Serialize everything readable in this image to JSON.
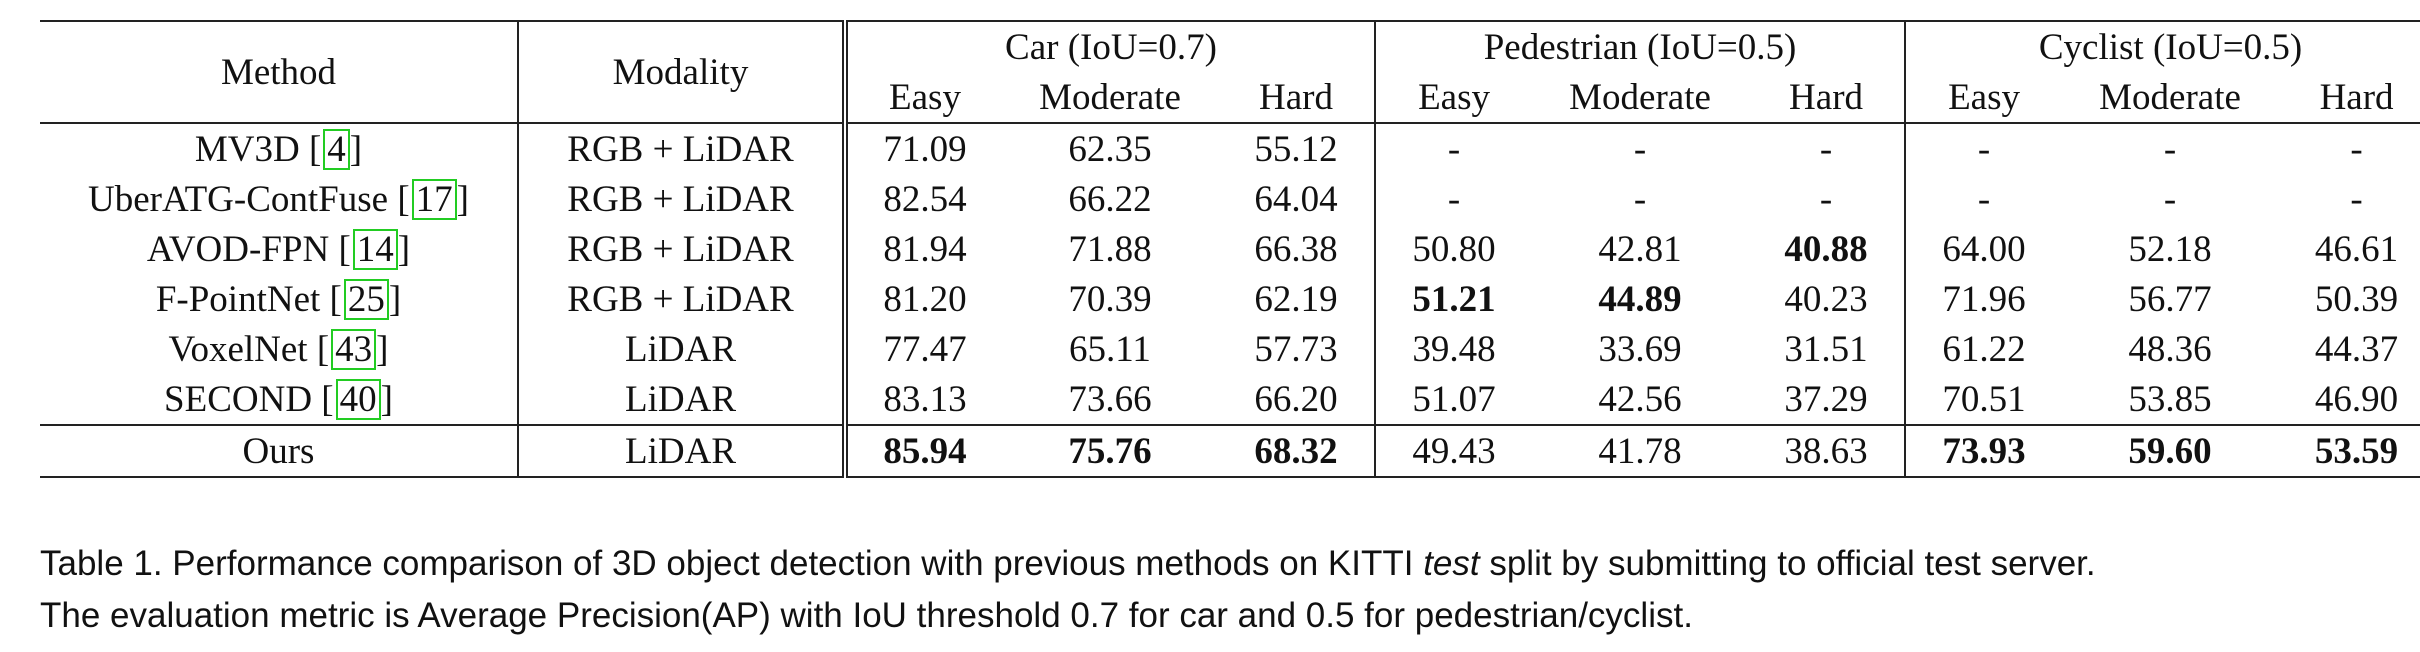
{
  "table": {
    "headers": {
      "method": "Method",
      "modality": "Modality",
      "groups": [
        "Car (IoU=0.7)",
        "Pedestrian (IoU=0.5)",
        "Cyclist (IoU=0.5)"
      ],
      "sub": [
        "Easy",
        "Moderate",
        "Hard"
      ]
    },
    "rows": [
      {
        "method": "MV3D [",
        "cite": "4",
        "close": "]",
        "modality": "RGB + LiDAR",
        "values": [
          "71.09",
          "62.35",
          "55.12",
          "-",
          "-",
          "-",
          "-",
          "-",
          "-"
        ],
        "bold": []
      },
      {
        "method": "UberATG-ContFuse [",
        "cite": "17",
        "close": "]",
        "modality": "RGB + LiDAR",
        "values": [
          "82.54",
          "66.22",
          "64.04",
          "-",
          "-",
          "-",
          "-",
          "-",
          "-"
        ],
        "bold": []
      },
      {
        "method": "AVOD-FPN [",
        "cite": "14",
        "close": "]",
        "modality": "RGB + LiDAR",
        "values": [
          "81.94",
          "71.88",
          "66.38",
          "50.80",
          "42.81",
          "40.88",
          "64.00",
          "52.18",
          "46.61"
        ],
        "bold": [
          5
        ]
      },
      {
        "method": "F-PointNet [",
        "cite": "25",
        "close": "]",
        "modality": "RGB + LiDAR",
        "values": [
          "81.20",
          "70.39",
          "62.19",
          "51.21",
          "44.89",
          "40.23",
          "71.96",
          "56.77",
          "50.39"
        ],
        "bold": [
          3,
          4
        ]
      },
      {
        "method": "VoxelNet [",
        "cite": "43",
        "close": "]",
        "modality": "LiDAR",
        "values": [
          "77.47",
          "65.11",
          "57.73",
          "39.48",
          "33.69",
          "31.51",
          "61.22",
          "48.36",
          "44.37"
        ],
        "bold": []
      },
      {
        "method": "SECOND [",
        "cite": "40",
        "close": "]",
        "modality": "LiDAR",
        "values": [
          "83.13",
          "73.66",
          "66.20",
          "51.07",
          "42.56",
          "37.29",
          "70.51",
          "53.85",
          "46.90"
        ],
        "bold": []
      }
    ],
    "ours": {
      "method": "Ours",
      "modality": "LiDAR",
      "values": [
        "85.94",
        "75.76",
        "68.32",
        "49.43",
        "41.78",
        "38.63",
        "73.93",
        "59.60",
        "53.59"
      ],
      "bold": [
        0,
        1,
        2,
        6,
        7,
        8
      ]
    }
  },
  "caption": {
    "line1_before": "Table 1. Performance comparison of 3D object detection with previous methods on KITTI ",
    "line1_em": "test",
    "line1_after": " split by submitting to official test server.",
    "line2": "The evaluation metric is Average Precision(AP) with IoU threshold 0.7 for car and 0.5 for pedestrian/cyclist."
  }
}
